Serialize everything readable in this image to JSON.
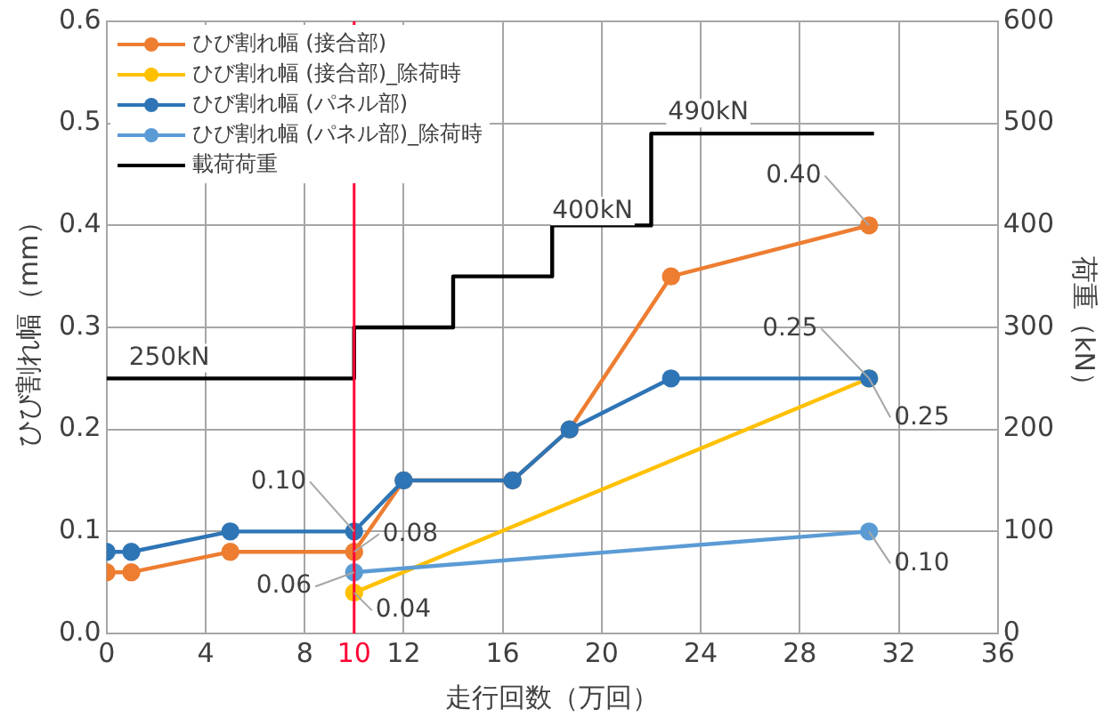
{
  "chart_data": {
    "type": "line",
    "xlabel": "走行回数（万回）",
    "ylabel": "ひび割れ幅（mm）",
    "y2label": "荷重（kN）",
    "xlim": [
      0,
      36
    ],
    "xticks": [
      0,
      4,
      8,
      10,
      12,
      16,
      20,
      24,
      28,
      32,
      36
    ],
    "ylim": [
      0,
      0.6
    ],
    "yticks": [
      {
        "value": 0,
        "label": "0.0"
      },
      {
        "value": 0.1,
        "label": "0.1"
      },
      {
        "value": 0.2,
        "label": "0.2"
      },
      {
        "value": 0.3,
        "label": "0.3"
      },
      {
        "value": 0.4,
        "label": "0.4"
      },
      {
        "value": 0.5,
        "label": "0.5"
      },
      {
        "value": 0.6,
        "label": "0.6"
      }
    ],
    "y2lim": [
      0,
      600
    ],
    "y2ticks": [
      0,
      100,
      200,
      300,
      400,
      500,
      600
    ],
    "grid": true,
    "legend": "top left",
    "marker": "circle",
    "ref_lines": [
      {
        "axis": "x",
        "value": 10,
        "color": "#ff0033"
      }
    ],
    "annotations": [
      "250kN",
      "400kN",
      "490kN"
    ],
    "series": [
      {
        "name": "ひび割れ幅 (接合部)",
        "color": "#ed7d31",
        "x": [
          0,
          1,
          5,
          10,
          12,
          16.4,
          18.7,
          22.8,
          30.8
        ],
        "values": [
          0.06,
          0.06,
          0.08,
          0.08,
          0.15,
          0.15,
          0.2,
          0.35,
          0.4
        ],
        "value_labels": [
          null,
          null,
          null,
          "0.08",
          null,
          null,
          null,
          null,
          "0.40"
        ]
      },
      {
        "name": "ひび割れ幅 (接合部)_除荷時",
        "color": "#ffc000",
        "x": [
          10,
          30.8
        ],
        "values": [
          0.04,
          0.25
        ],
        "value_labels": [
          "0.04",
          "0.25"
        ]
      },
      {
        "name": "ひび割れ幅 (パネル部)",
        "color": "#2e75b6",
        "x": [
          0,
          1,
          5,
          10,
          12,
          16.4,
          18.7,
          22.8,
          30.8
        ],
        "values": [
          0.08,
          0.08,
          0.1,
          0.1,
          0.15,
          0.15,
          0.2,
          0.25,
          0.25
        ],
        "value_labels": [
          null,
          null,
          null,
          "0.10",
          null,
          null,
          null,
          null,
          "0.25"
        ]
      },
      {
        "name": "ひび割れ幅 (パネル部)_除荷時",
        "color": "#5b9bd5",
        "x": [
          10,
          30.8
        ],
        "values": [
          0.06,
          0.1
        ],
        "value_labels": [
          "0.06",
          "0.10"
        ]
      },
      {
        "name": "載荷荷重",
        "type": "step",
        "axis": "y2",
        "marker": "none",
        "color": "#000000",
        "x": [
          0,
          10,
          14,
          18,
          22,
          31
        ],
        "values": [
          250,
          300,
          350,
          400,
          490,
          490
        ]
      }
    ]
  }
}
